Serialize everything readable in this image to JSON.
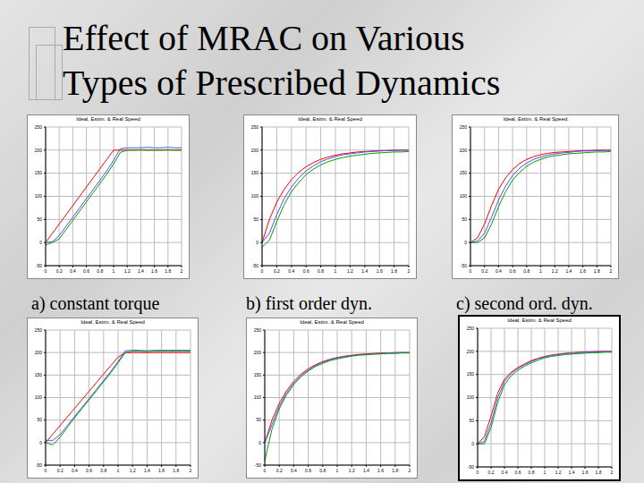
{
  "slide_title": [
    "Effect of MRAC on Various",
    "Types of Prescribed Dynamics"
  ],
  "captions": [
    "a) constant torque",
    "b) first order dyn.",
    "c) second ord. dyn."
  ],
  "chart_data": [
    {
      "type": "line",
      "title": "Ideal, Estim. & Real Speed",
      "x": [
        0,
        0.1,
        0.2,
        0.3,
        0.4,
        0.5,
        0.6,
        0.7,
        0.8,
        0.9,
        1,
        1.1,
        1.2,
        1.3,
        1.4,
        1.5,
        1.6,
        1.7,
        1.8,
        1.9,
        2
      ],
      "xlim": [
        0,
        2
      ],
      "xticks": [
        0,
        0.2,
        0.4,
        0.6,
        0.8,
        1,
        1.2,
        1.4,
        1.6,
        1.8,
        2
      ],
      "ylim": [
        -50,
        250
      ],
      "yticks": [
        -50,
        0,
        50,
        100,
        150,
        200,
        250
      ],
      "grid": true,
      "series": [
        {
          "color": "#ff0000",
          "values": [
            0,
            20,
            40,
            60,
            80,
            100,
            120,
            140,
            160,
            180,
            200,
            200,
            200,
            200,
            200,
            200,
            200,
            200,
            200,
            200,
            200
          ]
        },
        {
          "color": "#5050ff",
          "values": [
            0,
            2,
            15,
            35,
            55,
            75,
            95,
            115,
            135,
            155,
            178,
            203,
            205,
            205,
            205,
            206,
            205,
            205,
            206,
            205,
            205
          ]
        },
        {
          "color": "#00a000",
          "values": [
            -5,
            0,
            8,
            28,
            48,
            68,
            88,
            108,
            128,
            148,
            170,
            195,
            200,
            200,
            201,
            200,
            200,
            200,
            201,
            200,
            200
          ]
        }
      ]
    },
    {
      "type": "line",
      "title": "Ideal, Estim. & Real Speed",
      "x": [
        0,
        0.1,
        0.2,
        0.3,
        0.4,
        0.5,
        0.6,
        0.7,
        0.8,
        0.9,
        1,
        1.1,
        1.2,
        1.3,
        1.4,
        1.5,
        1.6,
        1.7,
        1.8,
        1.9,
        2
      ],
      "xlim": [
        0,
        2
      ],
      "xticks": [
        0,
        0.2,
        0.4,
        0.6,
        0.8,
        1,
        1.2,
        1.4,
        1.6,
        1.8,
        2
      ],
      "ylim": [
        -50,
        250
      ],
      "yticks": [
        -50,
        0,
        50,
        100,
        150,
        200,
        250
      ],
      "grid": true,
      "series": [
        {
          "color": "#ff0000",
          "values": [
            0,
            50,
            87,
            115,
            136,
            152,
            164,
            173,
            180,
            185,
            189,
            192,
            194,
            196,
            197,
            198,
            199,
            199,
            200,
            200,
            200
          ]
        },
        {
          "color": "#5050ff",
          "values": [
            0,
            20,
            60,
            95,
            120,
            140,
            155,
            166,
            175,
            181,
            186,
            190,
            192,
            194,
            196,
            197,
            198,
            199,
            199,
            200,
            200
          ]
        },
        {
          "color": "#00a000",
          "values": [
            -10,
            5,
            45,
            82,
            110,
            130,
            147,
            159,
            168,
            175,
            180,
            184,
            187,
            189,
            191,
            193,
            194,
            195,
            196,
            196,
            197
          ]
        }
      ]
    },
    {
      "type": "line",
      "title": "Ideal, Estim. & Real Speed",
      "x": [
        0,
        0.1,
        0.2,
        0.3,
        0.4,
        0.5,
        0.6,
        0.7,
        0.8,
        0.9,
        1,
        1.1,
        1.2,
        1.3,
        1.4,
        1.5,
        1.6,
        1.7,
        1.8,
        1.9,
        2
      ],
      "xlim": [
        0,
        2
      ],
      "xticks": [
        0,
        0.2,
        0.4,
        0.6,
        0.8,
        1,
        1.2,
        1.4,
        1.6,
        1.8,
        2
      ],
      "ylim": [
        -50,
        250
      ],
      "yticks": [
        -50,
        0,
        50,
        100,
        150,
        200,
        250
      ],
      "grid": true,
      "series": [
        {
          "color": "#ff0000",
          "values": [
            0,
            10,
            40,
            80,
            115,
            140,
            158,
            171,
            180,
            186,
            190,
            193,
            195,
            196,
            197,
            198,
            199,
            199,
            200,
            200,
            200
          ]
        },
        {
          "color": "#5050ff",
          "values": [
            0,
            3,
            20,
            55,
            92,
            122,
            145,
            161,
            172,
            180,
            185,
            189,
            192,
            194,
            195,
            197,
            198,
            198,
            199,
            199,
            200
          ]
        },
        {
          "color": "#00a000",
          "values": [
            0,
            0,
            10,
            40,
            78,
            110,
            135,
            152,
            165,
            174,
            180,
            185,
            188,
            190,
            192,
            193,
            194,
            195,
            196,
            196,
            197
          ]
        }
      ]
    },
    {
      "type": "line",
      "title": "Ideal, Estim. & Real Speed",
      "x": [
        0,
        0.1,
        0.2,
        0.3,
        0.4,
        0.5,
        0.6,
        0.7,
        0.8,
        0.9,
        1,
        1.1,
        1.2,
        1.3,
        1.4,
        1.5,
        1.6,
        1.7,
        1.8,
        1.9,
        2
      ],
      "xlim": [
        0,
        2
      ],
      "xticks": [
        0,
        0.2,
        0.4,
        0.6,
        0.8,
        1,
        1.2,
        1.4,
        1.6,
        1.8,
        2
      ],
      "ylim": [
        -50,
        250
      ],
      "yticks": [
        -50,
        0,
        50,
        100,
        150,
        200,
        250
      ],
      "grid": true,
      "series": [
        {
          "color": "#ff0000",
          "values": [
            0,
            19,
            38,
            57,
            76,
            95,
            114,
            133,
            152,
            171,
            190,
            200,
            200,
            200,
            200,
            200,
            200,
            200,
            200,
            200,
            200
          ]
        },
        {
          "color": "#5050ff",
          "values": [
            5,
            5,
            18,
            38,
            58,
            78,
            98,
            118,
            138,
            158,
            180,
            204,
            205,
            205,
            204,
            205,
            205,
            205,
            205,
            205,
            205
          ]
        },
        {
          "color": "#00a000",
          "values": [
            0,
            -5,
            12,
            34,
            55,
            75,
            95,
            115,
            135,
            155,
            177,
            200,
            203,
            203,
            202,
            203,
            203,
            203,
            203,
            203,
            203
          ]
        }
      ]
    },
    {
      "type": "line",
      "title": "Ideal, Estim. & Real Speed",
      "x": [
        0,
        0.1,
        0.2,
        0.3,
        0.4,
        0.5,
        0.6,
        0.7,
        0.8,
        0.9,
        1,
        1.1,
        1.2,
        1.3,
        1.4,
        1.5,
        1.6,
        1.7,
        1.8,
        1.9,
        2
      ],
      "xlim": [
        0,
        2
      ],
      "xticks": [
        0,
        0.2,
        0.4,
        0.6,
        0.8,
        1,
        1.2,
        1.4,
        1.6,
        1.8,
        2
      ],
      "ylim": [
        -50,
        250
      ],
      "yticks": [
        -50,
        0,
        50,
        100,
        150,
        200,
        250
      ],
      "grid": true,
      "series": [
        {
          "color": "#ff0000",
          "values": [
            0,
            50,
            87,
            115,
            136,
            152,
            164,
            173,
            180,
            185,
            189,
            192,
            194,
            196,
            197,
            198,
            199,
            199,
            200,
            200,
            200
          ]
        },
        {
          "color": "#5050ff",
          "values": [
            0,
            40,
            80,
            110,
            132,
            149,
            161,
            171,
            178,
            184,
            188,
            191,
            193,
            195,
            196,
            197,
            198,
            199,
            199,
            200,
            200
          ]
        },
        {
          "color": "#00a000",
          "values": [
            -40,
            30,
            75,
            106,
            129,
            146,
            159,
            169,
            176,
            182,
            186,
            189,
            192,
            194,
            195,
            196,
            197,
            198,
            198,
            199,
            199
          ]
        }
      ]
    },
    {
      "type": "line",
      "title": "Ideal, Estim. & Real Speed",
      "x": [
        0,
        0.1,
        0.2,
        0.3,
        0.4,
        0.5,
        0.6,
        0.7,
        0.8,
        0.9,
        1,
        1.1,
        1.2,
        1.3,
        1.4,
        1.5,
        1.6,
        1.7,
        1.8,
        1.9,
        2
      ],
      "xlim": [
        0,
        2
      ],
      "xticks": [
        0,
        0.2,
        0.4,
        0.6,
        0.8,
        1,
        1.2,
        1.4,
        1.6,
        1.8,
        2
      ],
      "ylim": [
        -50,
        250
      ],
      "yticks": [
        -50,
        0,
        50,
        100,
        150,
        200,
        250
      ],
      "grid": true,
      "series": [
        {
          "color": "#ff0000",
          "values": [
            0,
            15,
            60,
            110,
            140,
            155,
            165,
            173,
            180,
            185,
            189,
            192,
            194,
            196,
            197,
            198,
            199,
            199,
            200,
            200,
            200
          ]
        },
        {
          "color": "#5050ff",
          "values": [
            0,
            5,
            45,
            100,
            135,
            152,
            163,
            171,
            178,
            184,
            188,
            191,
            193,
            195,
            196,
            197,
            198,
            199,
            199,
            200,
            200
          ]
        },
        {
          "color": "#00a000",
          "values": [
            0,
            0,
            35,
            90,
            128,
            147,
            159,
            168,
            175,
            181,
            186,
            189,
            191,
            193,
            194,
            195,
            196,
            197,
            197,
            198,
            198
          ]
        }
      ]
    }
  ]
}
